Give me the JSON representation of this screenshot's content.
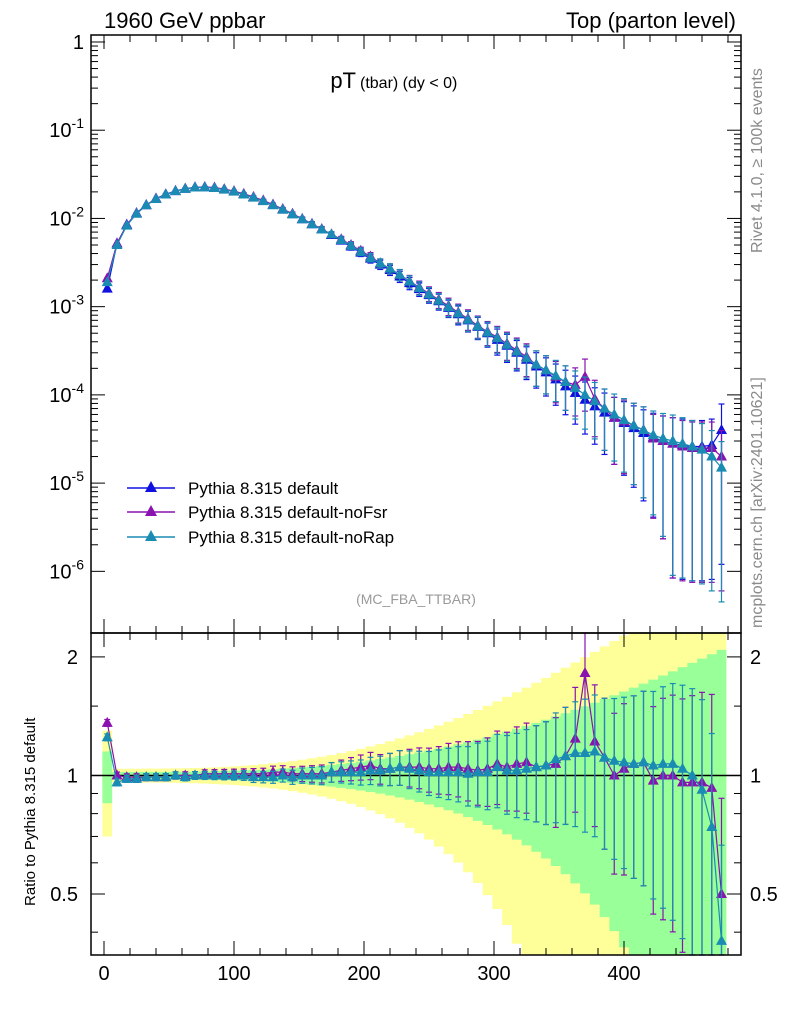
{
  "header": {
    "left": "1960 GeV ppbar",
    "right": "Top (parton level)"
  },
  "plot_title": {
    "main": "pT",
    "sub": "(tbar) (dy < 0)"
  },
  "side_labels": {
    "rivet": "Rivet 4.1.0, ≥ 100k events",
    "mcplots": "mcplots.cern.ch [arXiv:2401.10621]"
  },
  "analysis_tag": "(MC_FBA_TTBAR)",
  "ratio_ylabel": "Ratio to Pythia 8.315 default",
  "legend": [
    {
      "label": "Pythia 8.315 default",
      "color": "#1010e0"
    },
    {
      "label": "Pythia 8.315 default-noFsr",
      "color": "#8a12b0"
    },
    {
      "label": "Pythia 8.315 default-noRap",
      "color": "#1a8cb4"
    }
  ],
  "chart_data": [
    {
      "type": "line",
      "scale": "log",
      "title": "pT (tbar) (dy < 0)",
      "xlabel": "",
      "ylabel": "",
      "xlim": [
        -10,
        490
      ],
      "ylim": [
        2e-07,
        1.2
      ],
      "y_ticks": [
        "1",
        "10^-1",
        "10^-2",
        "10^-3",
        "10^-4",
        "10^-5",
        "10^-6"
      ],
      "x": [
        2.5,
        10,
        17.5,
        25,
        32.5,
        40,
        47.5,
        55,
        62.5,
        70,
        77.5,
        85,
        92.5,
        100,
        107.5,
        115,
        122.5,
        130,
        137.5,
        145,
        152.5,
        160,
        167.5,
        175,
        182.5,
        190,
        197.5,
        205,
        212.5,
        220,
        227.5,
        235,
        242.5,
        250,
        257.5,
        265,
        272.5,
        280,
        287.5,
        295,
        302.5,
        310,
        317.5,
        325,
        332.5,
        340,
        347.5,
        355,
        362.5,
        370,
        377.5,
        385,
        392.5,
        400,
        407.5,
        415,
        422.5,
        430,
        437.5,
        445,
        452.5,
        460,
        467.5,
        475
      ],
      "series": [
        {
          "name": "Pythia 8.315 default",
          "color": "#1010e0",
          "values": [
            0.0016,
            0.0052,
            0.0085,
            0.0115,
            0.0142,
            0.0168,
            0.0188,
            0.0205,
            0.0218,
            0.0225,
            0.0226,
            0.0222,
            0.0213,
            0.0202,
            0.0188,
            0.0173,
            0.0158,
            0.0142,
            0.0126,
            0.0112,
            0.0098,
            0.0086,
            0.0075,
            0.0065,
            0.0056,
            0.0048,
            0.0041,
            0.0035,
            0.003,
            0.0026,
            0.0022,
            0.00185,
            0.00158,
            0.00135,
            0.00115,
            0.00097,
            0.00082,
            0.0007,
            0.00059,
            0.0005,
            0.00042,
            0.00036,
            0.0003,
            0.00025,
            0.00021,
            0.00018,
            0.00015,
            0.000125,
            0.000105,
            8.8e-05,
            7.4e-05,
            6.3e-05,
            5.5e-05,
            4.8e-05,
            4.2e-05,
            3.7e-05,
            3.3e-05,
            3e-05,
            2.8e-05,
            2.7e-05,
            2.6e-05,
            2.6e-05,
            2.7e-05,
            4e-05
          ]
        },
        {
          "name": "Pythia 8.315 default-noFsr",
          "color": "#8a12b0",
          "values": [
            0.0021,
            0.0052,
            0.0084,
            0.0114,
            0.0141,
            0.0167,
            0.0187,
            0.0204,
            0.0217,
            0.0225,
            0.0227,
            0.0224,
            0.0215,
            0.0204,
            0.019,
            0.0175,
            0.016,
            0.0144,
            0.0128,
            0.0113,
            0.0099,
            0.0087,
            0.0076,
            0.0066,
            0.0058,
            0.005,
            0.0043,
            0.0037,
            0.0031,
            0.0027,
            0.0023,
            0.00195,
            0.00166,
            0.00141,
            0.0012,
            0.00102,
            0.00086,
            0.00073,
            0.00061,
            0.00052,
            0.00045,
            0.00038,
            0.00032,
            0.00027,
            0.00022,
            0.00019,
            0.00016,
            0.00014,
            0.00013,
            0.00016,
            9e-05,
            7e-05,
            5.5e-05,
            5e-05,
            4.5e-05,
            4e-05,
            3.2e-05,
            3e-05,
            2.8e-05,
            2.6e-05,
            2.5e-05,
            2.5e-05,
            2.5e-05,
            2e-05
          ]
        },
        {
          "name": "Pythia 8.315 default-noRap",
          "color": "#1a8cb4",
          "values": [
            0.0019,
            0.005,
            0.0083,
            0.0113,
            0.0141,
            0.0166,
            0.0187,
            0.0204,
            0.0216,
            0.0224,
            0.0225,
            0.0221,
            0.0212,
            0.0201,
            0.0187,
            0.0172,
            0.0157,
            0.0141,
            0.0126,
            0.0111,
            0.0098,
            0.0086,
            0.0075,
            0.0066,
            0.0057,
            0.0049,
            0.0042,
            0.0036,
            0.0031,
            0.0027,
            0.0023,
            0.00193,
            0.00163,
            0.00138,
            0.00117,
            0.00099,
            0.00084,
            0.00071,
            0.0006,
            0.00051,
            0.00044,
            0.00037,
            0.00031,
            0.00026,
            0.00022,
            0.00019,
            0.000165,
            0.00014,
            0.00012,
            0.0001,
            8.5e-05,
            7e-05,
            6e-05,
            5.2e-05,
            4.5e-05,
            4e-05,
            3.5e-05,
            3.2e-05,
            3e-05,
            2.8e-05,
            2.6e-05,
            2.4e-05,
            2e-05,
            1.5e-05
          ]
        }
      ]
    },
    {
      "type": "line",
      "title": "",
      "xlabel": "",
      "ylabel": "Ratio to Pythia 8.315 default",
      "xlim": [
        -10,
        490
      ],
      "ylim": [
        0.35,
        2.3
      ],
      "x_ticks": [
        0,
        100,
        200,
        300,
        400
      ],
      "y_ticks": [
        0.5,
        1,
        2
      ],
      "reference": 1.0,
      "x": [
        2.5,
        10,
        17.5,
        25,
        32.5,
        40,
        47.5,
        55,
        62.5,
        70,
        77.5,
        85,
        92.5,
        100,
        107.5,
        115,
        122.5,
        130,
        137.5,
        145,
        152.5,
        160,
        167.5,
        175,
        182.5,
        190,
        197.5,
        205,
        212.5,
        220,
        227.5,
        235,
        242.5,
        250,
        257.5,
        265,
        272.5,
        280,
        287.5,
        295,
        302.5,
        310,
        317.5,
        325,
        332.5,
        340,
        347.5,
        355,
        362.5,
        370,
        377.5,
        385,
        392.5,
        400,
        407.5,
        415,
        422.5,
        430,
        437.5,
        445,
        452.5,
        460,
        467.5,
        475
      ],
      "series": [
        {
          "name": "Pythia 8.315 default-noFsr",
          "color": "#8a12b0",
          "values": [
            1.36,
            1.0,
            0.99,
            0.99,
            0.99,
            0.99,
            0.99,
            1.0,
            1.0,
            1.0,
            1.01,
            1.01,
            1.01,
            1.01,
            1.01,
            1.01,
            1.01,
            1.02,
            1.02,
            1.01,
            1.01,
            1.01,
            1.01,
            1.02,
            1.03,
            1.04,
            1.05,
            1.06,
            1.04,
            1.04,
            1.05,
            1.05,
            1.05,
            1.04,
            1.04,
            1.05,
            1.05,
            1.04,
            1.03,
            1.04,
            1.07,
            1.05,
            1.07,
            1.08,
            1.05,
            1.06,
            1.07,
            1.12,
            1.24,
            1.82,
            1.22,
            1.11,
            1.0,
            1.04,
            1.07,
            1.08,
            0.97,
            1.0,
            1.0,
            0.96,
            0.96,
            0.96,
            0.93,
            0.5
          ]
        },
        {
          "name": "Pythia 8.315 default-noRap",
          "color": "#1a8cb4",
          "values": [
            1.25,
            0.96,
            0.98,
            0.98,
            0.99,
            0.99,
            0.99,
            1.0,
            0.99,
            1.0,
            1.0,
            1.0,
            1.0,
            1.0,
            1.0,
            0.99,
            0.99,
            0.99,
            1.0,
            0.99,
            1.0,
            1.0,
            1.0,
            1.02,
            1.02,
            1.02,
            1.02,
            1.03,
            1.03,
            1.04,
            1.05,
            1.04,
            1.03,
            1.02,
            1.02,
            1.02,
            1.02,
            1.01,
            1.02,
            1.02,
            1.05,
            1.03,
            1.03,
            1.04,
            1.05,
            1.06,
            1.1,
            1.12,
            1.14,
            1.14,
            1.15,
            1.11,
            1.09,
            1.08,
            1.07,
            1.08,
            1.06,
            1.07,
            1.07,
            1.04,
            1.0,
            0.92,
            0.74,
            0.38
          ]
        }
      ]
    }
  ]
}
